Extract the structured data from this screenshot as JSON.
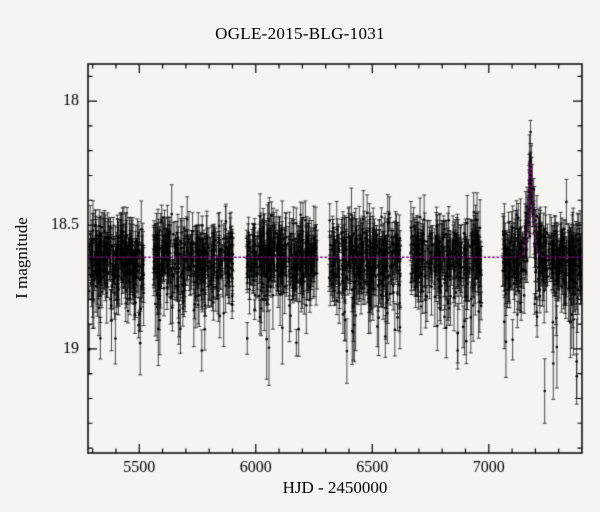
{
  "chart_data": {
    "type": "scatter",
    "title": "OGLE-2015-BLG-1031",
    "xlabel": "HJD - 2450000",
    "ylabel": "I magnitude",
    "xlim": [
      5280,
      7400
    ],
    "ylim": [
      17.85,
      19.42
    ],
    "y_inverted": true,
    "x_major_ticks": [
      5500,
      6000,
      6500,
      7000
    ],
    "x_major_step": 500,
    "x_minor_step": 100,
    "y_major_ticks": [
      18,
      18.5,
      19
    ],
    "y_minor_step": 0.1,
    "grid": false,
    "baseline_mag": 18.63,
    "scatter_sigma": 0.07,
    "faint_tail_fraction": 0.12,
    "faint_tail_max": 0.28,
    "error_bar_range": [
      0.03,
      0.12
    ],
    "point_color": "#000000",
    "frame_color": "#000000",
    "seasons": [
      {
        "start": 5285,
        "end": 5520,
        "n": 270
      },
      {
        "start": 5560,
        "end": 5905,
        "n": 330
      },
      {
        "start": 5960,
        "end": 6265,
        "n": 330
      },
      {
        "start": 6315,
        "end": 6620,
        "n": 330
      },
      {
        "start": 6665,
        "end": 6970,
        "n": 300
      },
      {
        "start": 7055,
        "end": 7395,
        "n": 380
      }
    ],
    "model": {
      "type": "paczynski",
      "t0": 7180,
      "tE": 11,
      "u0": 0.9,
      "peak_mag": 18.25,
      "color": "#880088"
    },
    "outliers": [
      {
        "x": 7240,
        "mag": 19.17,
        "err": 0.13
      }
    ],
    "seed": 42
  }
}
